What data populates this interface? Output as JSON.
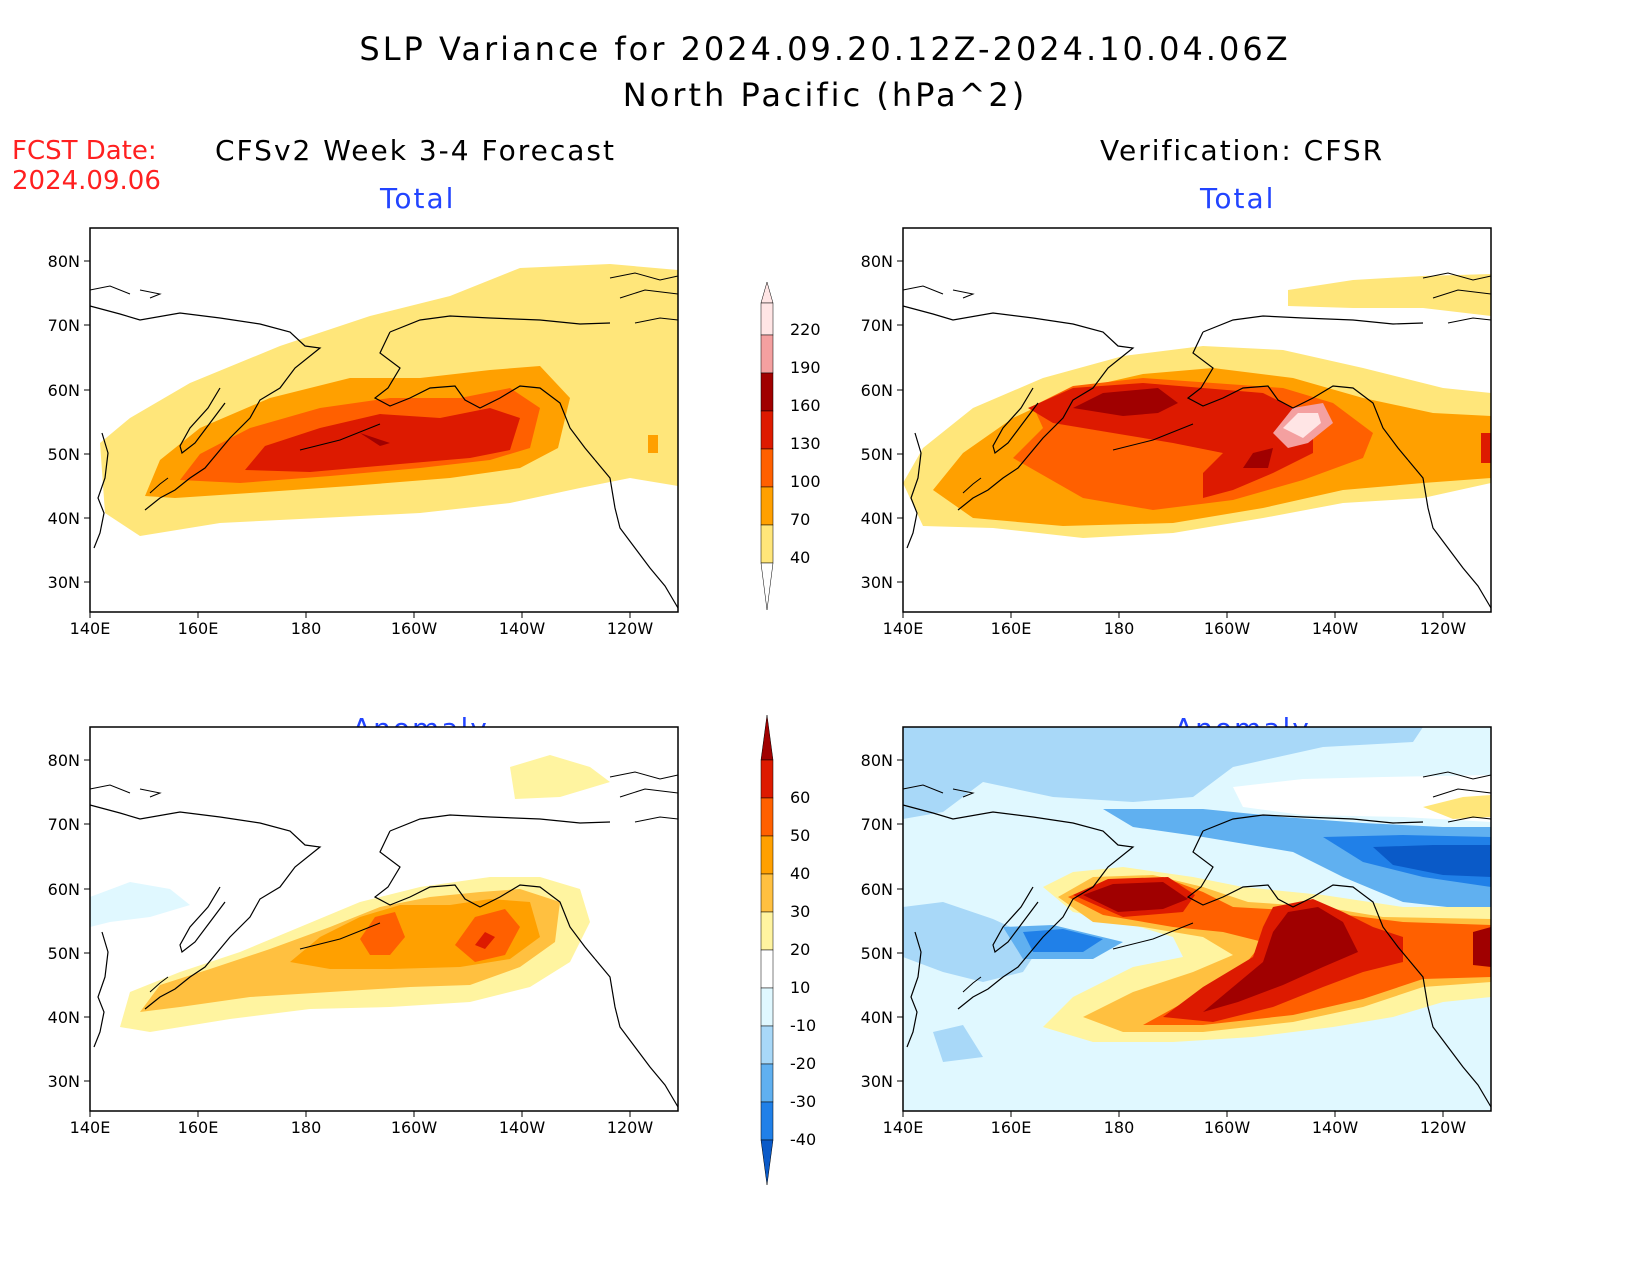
{
  "header": {
    "title": "SLP Variance for 2024.09.20.12Z-2024.10.04.06Z",
    "subtitle": "North Pacific (hPa^2)",
    "fcst_date_label": "FCST Date:",
    "fcst_date_value": "2024.09.06"
  },
  "columns": {
    "left": "CFSv2 Week 3-4 Forecast",
    "right": "Verification: CFSR"
  },
  "panels": {
    "fcst_total": "Total",
    "fcst_anomaly": "Anomaly",
    "ver_total": "Total",
    "ver_anomaly": "Anomaly"
  },
  "axes": {
    "lat_labels": [
      "80N",
      "70N",
      "60N",
      "50N",
      "40N",
      "30N"
    ],
    "lon_labels": [
      "140E",
      "160E",
      "180",
      "160W",
      "140W",
      "120W"
    ]
  },
  "colorbars": {
    "total": {
      "labels": [
        "220",
        "190",
        "160",
        "130",
        "100",
        "70",
        "40"
      ],
      "colors": [
        "#ffe5e5",
        "#f4a0a0",
        "#a00000",
        "#dd1a00",
        "#ff6000",
        "#ffa000",
        "#ffe67a"
      ]
    },
    "anomaly": {
      "labels": [
        "60",
        "50",
        "40",
        "30",
        "20",
        "10",
        "-10",
        "-20",
        "-30",
        "-40"
      ],
      "colors": [
        "#a00000",
        "#dd1a00",
        "#ff6000",
        "#ffa000",
        "#ffc040",
        "#fff4a0",
        "#ffffff",
        "#e0f8ff",
        "#a8d8f8",
        "#60b0f0",
        "#2080e8",
        "#0a5ac8"
      ]
    }
  },
  "map_colors": {
    "ocean": "#ffffff",
    "coast": "#000000"
  }
}
